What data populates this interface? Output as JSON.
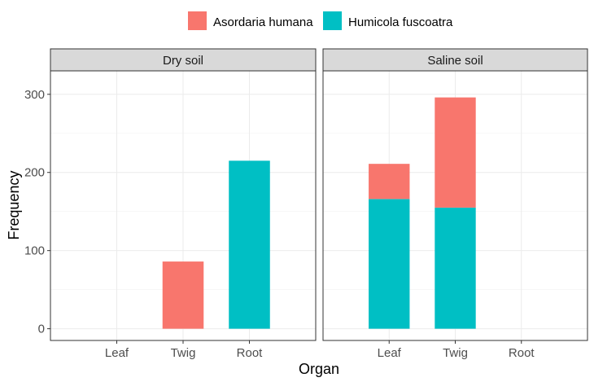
{
  "chart_data": {
    "type": "bar",
    "stacked": true,
    "xlabel": "Organ",
    "ylabel": "Frequency",
    "ylim": [
      -15,
      330
    ],
    "yticks": [
      0,
      100,
      200,
      300
    ],
    "categories": [
      "Leaf",
      "Twig",
      "Root"
    ],
    "legend_position": "top",
    "grid": true,
    "series": [
      {
        "name": "Asordaria humana",
        "color": "#F8766D"
      },
      {
        "name": "Humicola fuscoatra",
        "color": "#00BFC4"
      }
    ],
    "facets": [
      {
        "label": "Dry soil",
        "values": {
          "Asordaria humana": [
            0,
            86,
            0
          ],
          "Humicola fuscoatra": [
            0,
            0,
            215
          ]
        }
      },
      {
        "label": "Saline soil",
        "values": {
          "Asordaria humana": [
            45,
            141,
            0
          ],
          "Humicola fuscoatra": [
            166,
            155,
            0
          ]
        }
      }
    ]
  }
}
